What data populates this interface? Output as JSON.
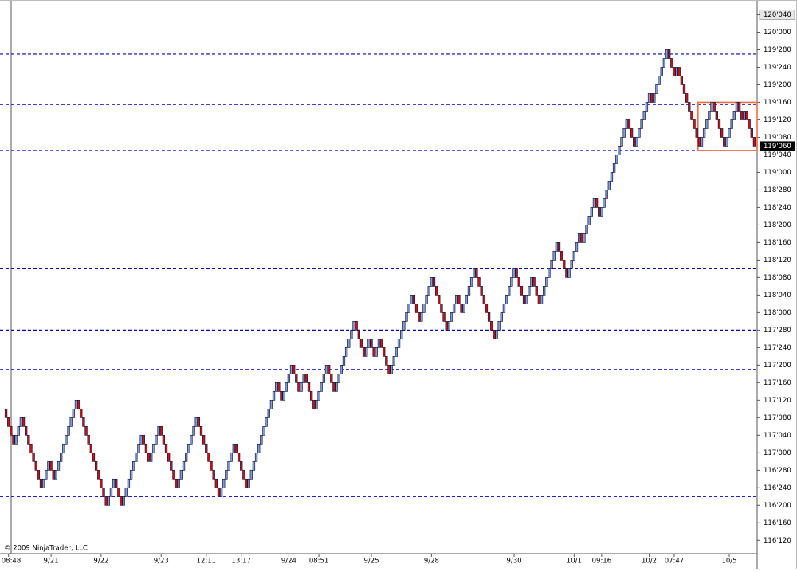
{
  "chart_data": {
    "type": "renko",
    "copyright": "© 2009 NinjaTrader, LLC",
    "up_color": "#7f9ed8",
    "down_color": "#d01010",
    "outline_color": "#1a1a40",
    "ylim": [
      116.28,
      120.23
    ],
    "yticks": [
      {
        "value": 120.125,
        "label": "120'040"
      },
      {
        "value": 120,
        "label": "120'000"
      },
      {
        "value": 119.875,
        "label": "119'280"
      },
      {
        "value": 119.75,
        "label": "119'240"
      },
      {
        "value": 119.625,
        "label": "119'200"
      },
      {
        "value": 119.5,
        "label": "119'160"
      },
      {
        "value": 119.375,
        "label": "119'120"
      },
      {
        "value": 119.25,
        "label": "119'080"
      },
      {
        "value": 119.125,
        "label": "119'040"
      },
      {
        "value": 119,
        "label": "119'000"
      },
      {
        "value": 118.875,
        "label": "118'280"
      },
      {
        "value": 118.75,
        "label": "118'240"
      },
      {
        "value": 118.625,
        "label": "118'200"
      },
      {
        "value": 118.5,
        "label": "118'160"
      },
      {
        "value": 118.375,
        "label": "118'120"
      },
      {
        "value": 118.25,
        "label": "118'080"
      },
      {
        "value": 118.125,
        "label": "118'040"
      },
      {
        "value": 118,
        "label": "118'000"
      },
      {
        "value": 117.875,
        "label": "117'280"
      },
      {
        "value": 117.75,
        "label": "117'240"
      },
      {
        "value": 117.625,
        "label": "117'200"
      },
      {
        "value": 117.5,
        "label": "117'160"
      },
      {
        "value": 117.375,
        "label": "117'120"
      },
      {
        "value": 117.25,
        "label": "117'080"
      },
      {
        "value": 117.125,
        "label": "117'040"
      },
      {
        "value": 117,
        "label": "117'000"
      },
      {
        "value": 116.875,
        "label": "116'280"
      },
      {
        "value": 116.75,
        "label": "116'240"
      },
      {
        "value": 116.625,
        "label": "116'200"
      },
      {
        "value": 116.5,
        "label": "116'160"
      },
      {
        "value": 116.375,
        "label": "116'120"
      }
    ],
    "last_price": {
      "value": 119.1875,
      "label": "119'060"
    },
    "levels": [
      119.84375,
      119.484375,
      119.15625,
      118.3125,
      117.875,
      117.59375,
      116.6875
    ],
    "level_color": "#0000c8",
    "zone": {
      "from_index": 277,
      "ylim": [
        119.15625,
        119.5
      ],
      "color": "#f26b4a"
    },
    "categories": [
      null,
      "08:48",
      null,
      null,
      null,
      null,
      null,
      null,
      null,
      null,
      null,
      null,
      null,
      null,
      null,
      null,
      null,
      null,
      "9/21",
      null,
      null,
      null,
      null,
      null,
      null,
      null,
      null,
      null,
      null,
      null,
      null,
      null,
      null,
      null,
      null,
      null,
      null,
      null,
      "9/22",
      null,
      null,
      null,
      null,
      null,
      null,
      null,
      null,
      null,
      null,
      null,
      null,
      null,
      null,
      null,
      null,
      null,
      null,
      null,
      null,
      null,
      null,
      null,
      "9/23",
      null,
      null,
      null,
      null,
      null,
      null,
      null,
      null,
      null,
      null,
      null,
      null,
      null,
      null,
      null,
      null,
      null,
      "12:11",
      null,
      null,
      null,
      null,
      null,
      null,
      null,
      null,
      null,
      null,
      null,
      null,
      null,
      "13:17",
      null,
      null,
      null,
      null,
      null,
      null,
      null,
      null,
      null,
      null,
      null,
      null,
      null,
      null,
      null,
      null,
      null,
      null,
      "9/24",
      null,
      null,
      null,
      null,
      null,
      null,
      null,
      null,
      null,
      null,
      null,
      "08:51",
      null,
      null,
      null,
      null,
      null,
      null,
      null,
      null,
      null,
      null,
      null,
      null,
      null,
      null,
      null,
      null,
      null,
      null,
      null,
      null,
      "9/25",
      null,
      null,
      null,
      null,
      null,
      null,
      null,
      null,
      null,
      null,
      null,
      null,
      null,
      null,
      null,
      null,
      null,
      null,
      null,
      null,
      null,
      null,
      null,
      "9/28",
      null,
      null,
      null,
      null,
      null,
      null,
      null,
      null,
      null,
      null,
      null,
      null,
      null,
      null,
      null,
      null,
      null,
      null,
      null,
      null,
      null,
      null,
      null,
      null,
      null,
      null,
      null,
      null,
      null,
      null,
      null,
      null,
      "9/30",
      null,
      null,
      null,
      null,
      null,
      null,
      null,
      null,
      null,
      null,
      null,
      null,
      null,
      null,
      null,
      null,
      null,
      null,
      null,
      null,
      null,
      null,
      null,
      "10/1",
      null,
      null,
      null,
      null,
      null,
      null,
      null,
      null,
      null,
      null,
      "09:16",
      null,
      null,
      null,
      null,
      null,
      null,
      null,
      null,
      null,
      null,
      null,
      null,
      null,
      null,
      null,
      null,
      null,
      null,
      "10/2",
      null,
      null,
      null,
      null,
      null,
      null,
      null,
      null,
      null,
      "07:47",
      null,
      null,
      null,
      null,
      null,
      null,
      null,
      null,
      null,
      null,
      null,
      null,
      null,
      null,
      null,
      null,
      null,
      null,
      null,
      null,
      null,
      "10/5",
      null,
      null,
      null,
      null,
      null,
      null,
      null,
      null,
      null,
      null
    ],
    "values": [
      117.25,
      117.1875,
      117.125,
      117.0625,
      117.125,
      117.1875,
      117.25,
      117.1875,
      117.125,
      117.0625,
      117,
      116.9375,
      116.875,
      116.8125,
      116.75,
      116.8125,
      116.875,
      116.9375,
      116.875,
      116.8125,
      116.875,
      116.9375,
      117,
      117.0625,
      117.125,
      117.1875,
      117.25,
      117.3125,
      117.375,
      117.3125,
      117.25,
      117.1875,
      117.125,
      117.0625,
      117,
      116.9375,
      116.875,
      116.8125,
      116.75,
      116.6875,
      116.625,
      116.6875,
      116.75,
      116.8125,
      116.75,
      116.6875,
      116.625,
      116.6875,
      116.75,
      116.8125,
      116.875,
      116.9375,
      117,
      117.0625,
      117.125,
      117.0625,
      117,
      116.9375,
      117,
      117.0625,
      117.125,
      117.1875,
      117.125,
      117.0625,
      117,
      116.9375,
      116.875,
      116.8125,
      116.75,
      116.8125,
      116.875,
      116.9375,
      117,
      117.0625,
      117.125,
      117.1875,
      117.25,
      117.1875,
      117.125,
      117.0625,
      117,
      116.9375,
      116.875,
      116.8125,
      116.75,
      116.6875,
      116.75,
      116.8125,
      116.875,
      116.9375,
      117,
      117.0625,
      117,
      116.9375,
      116.875,
      116.8125,
      116.75,
      116.8125,
      116.875,
      116.9375,
      117,
      117.0625,
      117.125,
      117.1875,
      117.25,
      117.3125,
      117.375,
      117.4375,
      117.5,
      117.4375,
      117.375,
      117.4375,
      117.5,
      117.5625,
      117.625,
      117.5625,
      117.5,
      117.4375,
      117.5,
      117.5625,
      117.5,
      117.4375,
      117.375,
      117.3125,
      117.375,
      117.4375,
      117.5,
      117.5625,
      117.625,
      117.5625,
      117.5,
      117.4375,
      117.5,
      117.5625,
      117.625,
      117.6875,
      117.75,
      117.8125,
      117.875,
      117.9375,
      117.875,
      117.8125,
      117.75,
      117.6875,
      117.75,
      117.8125,
      117.75,
      117.6875,
      117.75,
      117.8125,
      117.75,
      117.6875,
      117.625,
      117.5625,
      117.625,
      117.6875,
      117.75,
      117.8125,
      117.875,
      117.9375,
      118,
      118.0625,
      118.125,
      118.0625,
      118,
      117.9375,
      118,
      118.0625,
      118.125,
      118.1875,
      118.25,
      118.1875,
      118.125,
      118.0625,
      118,
      117.9375,
      117.875,
      117.9375,
      118,
      118.0625,
      118.125,
      118.0625,
      118,
      118.0625,
      118.125,
      118.1875,
      118.25,
      118.3125,
      118.25,
      118.1875,
      118.125,
      118.0625,
      118,
      117.9375,
      117.875,
      117.8125,
      117.875,
      117.9375,
      118,
      118.0625,
      118.125,
      118.1875,
      118.25,
      118.3125,
      118.25,
      118.1875,
      118.125,
      118.0625,
      118.125,
      118.1875,
      118.25,
      118.1875,
      118.125,
      118.0625,
      118.125,
      118.1875,
      118.25,
      118.3125,
      118.375,
      118.4375,
      118.5,
      118.4375,
      118.375,
      118.3125,
      118.25,
      118.3125,
      118.375,
      118.4375,
      118.5,
      118.5625,
      118.5,
      118.5625,
      118.625,
      118.6875,
      118.75,
      118.8125,
      118.75,
      118.6875,
      118.75,
      118.8125,
      118.875,
      118.9375,
      119,
      119.0625,
      119.125,
      119.1875,
      119.25,
      119.3125,
      119.375,
      119.3125,
      119.25,
      119.1875,
      119.25,
      119.3125,
      119.375,
      119.4375,
      119.5,
      119.5625,
      119.5,
      119.5625,
      119.625,
      119.6875,
      119.75,
      119.8125,
      119.875,
      119.8125,
      119.75,
      119.6875,
      119.75,
      119.6875,
      119.625,
      119.5625,
      119.5,
      119.4375,
      119.375,
      119.3125,
      119.25,
      119.1875,
      119.25,
      119.3125,
      119.375,
      119.4375,
      119.5,
      119.4375,
      119.375,
      119.3125,
      119.25,
      119.1875,
      119.25,
      119.3125,
      119.375,
      119.4375,
      119.5,
      119.4375,
      119.375,
      119.4375,
      119.375,
      119.3125,
      119.25,
      119.1875
    ]
  }
}
